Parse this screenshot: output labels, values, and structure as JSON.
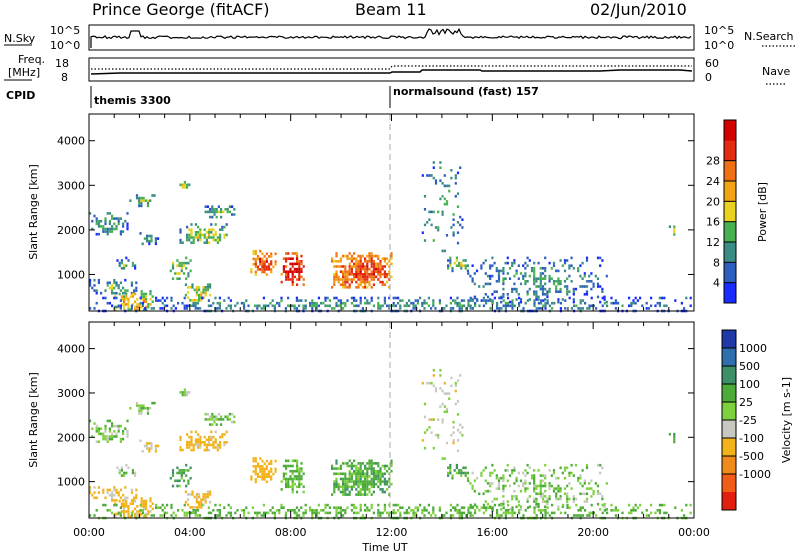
{
  "header": {
    "station": "Prince George (fitACF)",
    "beam": "Beam 11",
    "date": "02/Jun/2010"
  },
  "top_panels": {
    "nsky_label": "N.Sky",
    "nsky_ticks": [
      "10^5",
      "10^0"
    ],
    "nsearch_label": "N.Search",
    "nsearch_ticks": [
      "10^5",
      "10^0"
    ],
    "freq_label_1": "Freq.",
    "freq_label_2": "[MHz]",
    "freq_ticks": [
      "18",
      "8"
    ],
    "nave_label": "Nave",
    "nave_ticks": [
      "60",
      "0"
    ],
    "cpid_label": "CPID",
    "cpid_segments": [
      {
        "start_hour": 0,
        "text": "themis 3300"
      },
      {
        "start_hour": 12,
        "text": "normalsound (fast) 157"
      }
    ]
  },
  "axes": {
    "ylabel": "Slant Range [km]",
    "y_ticks": [
      "1000",
      "2000",
      "3000",
      "4000"
    ],
    "x_ticks": [
      "00:00",
      "04:00",
      "08:00",
      "12:00",
      "16:00",
      "20:00",
      "00:00"
    ],
    "xlabel": "Time UT"
  },
  "colorbars": {
    "power": {
      "label": "Power [dB]",
      "ticks": [
        "4",
        "8",
        "12",
        "16",
        "20",
        "24",
        "28"
      ],
      "colors": [
        "#1a2bff",
        "#2d5fc1",
        "#3b8c84",
        "#47b04f",
        "#e8d21f",
        "#f2a316",
        "#f07015",
        "#e22b12",
        "#d40000"
      ]
    },
    "velocity": {
      "label": "Velocity [m s-1]",
      "ticks": [
        "1000",
        "500",
        "100",
        "25",
        "-25",
        "-100",
        "-500",
        "-1000"
      ],
      "colors": [
        "#1f3aa8",
        "#2f6fae",
        "#3d8f67",
        "#4dab3a",
        "#7ed13e",
        "#c8c8c0",
        "#f2b21a",
        "#f08a1a",
        "#ef5d16",
        "#e21f0f"
      ]
    }
  },
  "chart_data": {
    "type": "heatmap",
    "x_unit": "hours UT",
    "x_range": [
      0,
      24
    ],
    "y_unit": "km",
    "y_range": [
      180,
      4600
    ],
    "power_clusters": [
      {
        "t0": 0.0,
        "t1": 1.5,
        "r0": 1900,
        "r1": 2400,
        "p": 6,
        "d": 0.55
      },
      {
        "t0": 0.0,
        "t1": 2.0,
        "r0": 550,
        "r1": 900,
        "p": 7,
        "d": 0.65
      },
      {
        "t0": 1.0,
        "t1": 2.0,
        "r0": 1100,
        "r1": 1400,
        "p": 6,
        "d": 0.5
      },
      {
        "t0": 1.6,
        "t1": 2.6,
        "r0": 2550,
        "r1": 2800,
        "p": 8,
        "d": 0.7
      },
      {
        "t0": 2.0,
        "t1": 2.7,
        "r0": 1700,
        "r1": 1950,
        "p": 6,
        "d": 0.6
      },
      {
        "t0": 1.0,
        "t1": 2.5,
        "r0": 200,
        "r1": 650,
        "p": 14,
        "d": 0.7
      },
      {
        "t0": 3.5,
        "t1": 4.0,
        "r0": 2950,
        "r1": 3100,
        "p": 12,
        "d": 0.8
      },
      {
        "t0": 3.5,
        "t1": 5.5,
        "r0": 1700,
        "r1": 2150,
        "p": 10,
        "d": 0.75
      },
      {
        "t0": 4.5,
        "t1": 5.8,
        "r0": 2300,
        "r1": 2550,
        "p": 7,
        "d": 0.65
      },
      {
        "t0": 3.2,
        "t1": 4.0,
        "r0": 900,
        "r1": 1400,
        "p": 10,
        "d": 0.6
      },
      {
        "t0": 3.8,
        "t1": 4.8,
        "r0": 400,
        "r1": 800,
        "p": 12,
        "d": 0.7
      },
      {
        "t0": 6.4,
        "t1": 7.4,
        "r0": 1000,
        "r1": 1550,
        "p": 20,
        "d": 0.85
      },
      {
        "t0": 7.6,
        "t1": 8.5,
        "r0": 750,
        "r1": 1500,
        "p": 24,
        "d": 0.9
      },
      {
        "t0": 9.6,
        "t1": 12.0,
        "r0": 700,
        "r1": 1500,
        "p": 20,
        "d": 0.85
      },
      {
        "t0": 13.2,
        "t1": 14.8,
        "r0": 1500,
        "r1": 3600,
        "p": 6,
        "d": 0.12
      },
      {
        "t0": 14.2,
        "t1": 15.0,
        "r0": 1100,
        "r1": 1400,
        "p": 10,
        "d": 0.7
      },
      {
        "t0": 15.0,
        "t1": 20.5,
        "r0": 400,
        "r1": 1400,
        "p": 5,
        "d": 0.35
      },
      {
        "t0": 23.0,
        "t1": 23.3,
        "r0": 1900,
        "r1": 2100,
        "p": 12,
        "d": 0.8
      },
      {
        "t0": 0.0,
        "t1": 24.0,
        "r0": 180,
        "r1": 500,
        "p": 5,
        "d": 0.45
      }
    ],
    "velocity_clusters": [
      {
        "t0": 0.0,
        "t1": 1.5,
        "r0": 1900,
        "r1": 2400,
        "v": 0,
        "d": 0.55
      },
      {
        "t0": 0.0,
        "t1": 2.0,
        "r0": 550,
        "r1": 900,
        "v": -120,
        "d": 0.65
      },
      {
        "t0": 1.0,
        "t1": 2.0,
        "r0": 1100,
        "r1": 1400,
        "v": 0,
        "d": 0.5
      },
      {
        "t0": 1.6,
        "t1": 2.6,
        "r0": 2550,
        "r1": 2800,
        "v": 0,
        "d": 0.7
      },
      {
        "t0": 2.0,
        "t1": 2.7,
        "r0": 1700,
        "r1": 1950,
        "v": -80,
        "d": 0.6
      },
      {
        "t0": 1.0,
        "t1": 2.5,
        "r0": 200,
        "r1": 650,
        "v": -150,
        "d": 0.7
      },
      {
        "t0": 3.5,
        "t1": 4.0,
        "r0": 2950,
        "r1": 3100,
        "v": 0,
        "d": 0.8
      },
      {
        "t0": 3.5,
        "t1": 5.5,
        "r0": 1700,
        "r1": 2150,
        "v": -150,
        "d": 0.75
      },
      {
        "t0": 4.5,
        "t1": 5.8,
        "r0": 2300,
        "r1": 2550,
        "v": 0,
        "d": 0.65
      },
      {
        "t0": 3.2,
        "t1": 4.0,
        "r0": 900,
        "r1": 1400,
        "v": 80,
        "d": 0.6
      },
      {
        "t0": 3.8,
        "t1": 4.8,
        "r0": 400,
        "r1": 800,
        "v": -130,
        "d": 0.7
      },
      {
        "t0": 6.4,
        "t1": 7.4,
        "r0": 1000,
        "r1": 1550,
        "v": -250,
        "d": 0.85
      },
      {
        "t0": 7.6,
        "t1": 8.5,
        "r0": 750,
        "r1": 1500,
        "v": 40,
        "d": 0.9
      },
      {
        "t0": 9.6,
        "t1": 12.0,
        "r0": 700,
        "r1": 1500,
        "v": 60,
        "d": 0.85
      },
      {
        "t0": 13.2,
        "t1": 14.8,
        "r0": 1500,
        "r1": 3600,
        "v": -50,
        "d": 0.12
      },
      {
        "t0": 14.2,
        "t1": 15.0,
        "r0": 1100,
        "r1": 1400,
        "v": 70,
        "d": 0.7
      },
      {
        "t0": 15.0,
        "t1": 20.5,
        "r0": 400,
        "r1": 1400,
        "v": 0,
        "d": 0.35
      },
      {
        "t0": 23.0,
        "t1": 23.3,
        "r0": 1900,
        "r1": 2100,
        "v": 80,
        "d": 0.8
      },
      {
        "t0": 0.0,
        "t1": 24.0,
        "r0": 180,
        "r1": 500,
        "v": 40,
        "d": 0.45
      }
    ]
  }
}
